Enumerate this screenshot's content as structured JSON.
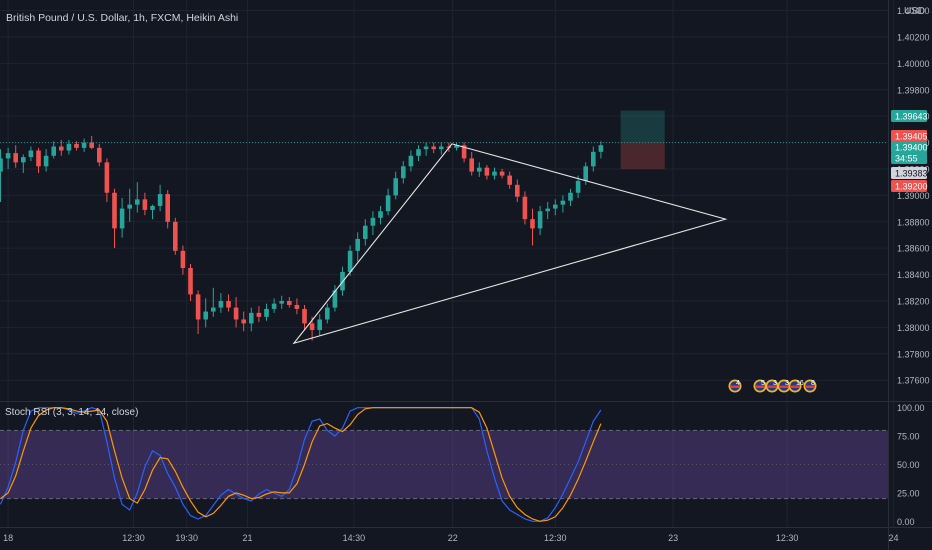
{
  "header": {
    "symbol_title": "British Pound / U.S. Dollar, 1h, FXCM, Heikin Ashi",
    "currency": "USD"
  },
  "colors": {
    "background": "#131722",
    "grid": "#1f2330",
    "up": "#26a69a",
    "down": "#ef5350",
    "stoch_k": "#2962ff",
    "stoch_d": "#ff9800",
    "stoch_band": "#7e57c2",
    "axis_text": "#b2b5be"
  },
  "price_tags": [
    {
      "label": "1.39643",
      "value": 1.39643,
      "color": "#26a69a",
      "text_color": "#ffffff"
    },
    {
      "label": "1.39405",
      "value": 1.39405,
      "color": "#ef5350",
      "text_color": "#ffffff"
    },
    {
      "label": "1.39400",
      "value": 1.394,
      "color": "#26a69a",
      "text_color": "#ffffff"
    },
    {
      "label": "34:55",
      "value": 1.39345,
      "color": "#26a69a",
      "text_color": "#ffffff"
    },
    {
      "label": "1.39383",
      "value": 1.3927,
      "color": "#d1d4dc",
      "text_color": "#131722"
    },
    {
      "label": "1.39200",
      "value": 1.392,
      "color": "#ef5350",
      "text_color": "#ffffff"
    }
  ],
  "event_badges": [
    {
      "label": "4"
    },
    {
      "label": "5"
    },
    {
      "label": "3"
    },
    {
      "label": "3"
    },
    {
      "label": "16"
    },
    {
      "label": "8"
    }
  ],
  "chart_data": [
    {
      "type": "candlestick",
      "style": "Heikin Ashi",
      "ylim": [
        1.3745,
        1.4048
      ],
      "y_ticks": [
        1.404,
        1.402,
        1.4,
        1.398,
        1.396,
        1.394,
        1.392,
        1.39,
        1.388,
        1.386,
        1.384,
        1.382,
        1.38,
        1.378,
        1.376
      ],
      "y_tick_labels": [
        "1.40400",
        "1.40200",
        "1.40000",
        "1.39800",
        "1.39600",
        "1.39400",
        "1.39200",
        "1.39000",
        "1.38800",
        "1.38600",
        "1.38400",
        "1.38200",
        "1.38000",
        "1.37800",
        "1.37600"
      ],
      "x_ticks": [
        {
          "label": "18",
          "bar": 1
        },
        {
          "label": "12:30",
          "bar": 17.5
        },
        {
          "label": "19:30",
          "bar": 24.5
        },
        {
          "label": "21",
          "bar": 32.5
        },
        {
          "label": "14:30",
          "bar": 46.5
        },
        {
          "label": "22",
          "bar": 59.5
        },
        {
          "label": "12:30",
          "bar": 73
        },
        {
          "label": "23",
          "bar": 88.5
        },
        {
          "label": "12:30",
          "bar": 103.5
        },
        {
          "label": "24",
          "bar": 117.5
        }
      ],
      "bars": [
        {
          "o": 1.3918,
          "h": 1.3935,
          "l": 1.3895,
          "c": 1.3928
        },
        {
          "o": 1.3928,
          "h": 1.3936,
          "l": 1.392,
          "c": 1.3932
        },
        {
          "o": 1.3932,
          "h": 1.3938,
          "l": 1.3921,
          "c": 1.3925
        },
        {
          "o": 1.3925,
          "h": 1.3931,
          "l": 1.3917,
          "c": 1.3929
        },
        {
          "o": 1.3929,
          "h": 1.3937,
          "l": 1.3926,
          "c": 1.3934
        },
        {
          "o": 1.3934,
          "h": 1.3936,
          "l": 1.3917,
          "c": 1.3922
        },
        {
          "o": 1.3922,
          "h": 1.3935,
          "l": 1.3918,
          "c": 1.393
        },
        {
          "o": 1.393,
          "h": 1.3941,
          "l": 1.3928,
          "c": 1.3937
        },
        {
          "o": 1.3937,
          "h": 1.3942,
          "l": 1.393,
          "c": 1.3934
        },
        {
          "o": 1.3934,
          "h": 1.3942,
          "l": 1.3931,
          "c": 1.3939
        },
        {
          "o": 1.3939,
          "h": 1.3941,
          "l": 1.3934,
          "c": 1.3936
        },
        {
          "o": 1.3936,
          "h": 1.3943,
          "l": 1.3933,
          "c": 1.394
        },
        {
          "o": 1.394,
          "h": 1.3945,
          "l": 1.3935,
          "c": 1.3936
        },
        {
          "o": 1.3936,
          "h": 1.3939,
          "l": 1.3922,
          "c": 1.3925
        },
        {
          "o": 1.3925,
          "h": 1.3928,
          "l": 1.3895,
          "c": 1.3902
        },
        {
          "o": 1.3902,
          "h": 1.3905,
          "l": 1.386,
          "c": 1.3875
        },
        {
          "o": 1.3875,
          "h": 1.3898,
          "l": 1.3868,
          "c": 1.389
        },
        {
          "o": 1.389,
          "h": 1.3905,
          "l": 1.388,
          "c": 1.3893
        },
        {
          "o": 1.3893,
          "h": 1.391,
          "l": 1.3887,
          "c": 1.3897
        },
        {
          "o": 1.3897,
          "h": 1.3902,
          "l": 1.3885,
          "c": 1.3889
        },
        {
          "o": 1.3889,
          "h": 1.3893,
          "l": 1.3882,
          "c": 1.3892
        },
        {
          "o": 1.3892,
          "h": 1.3908,
          "l": 1.3888,
          "c": 1.3901
        },
        {
          "o": 1.3901,
          "h": 1.3904,
          "l": 1.3875,
          "c": 1.388
        },
        {
          "o": 1.388,
          "h": 1.3883,
          "l": 1.3855,
          "c": 1.3858
        },
        {
          "o": 1.3858,
          "h": 1.3862,
          "l": 1.384,
          "c": 1.3845
        },
        {
          "o": 1.3845,
          "h": 1.3848,
          "l": 1.382,
          "c": 1.3825
        },
        {
          "o": 1.3825,
          "h": 1.3828,
          "l": 1.3795,
          "c": 1.3806
        },
        {
          "o": 1.3806,
          "h": 1.3822,
          "l": 1.38,
          "c": 1.3812
        },
        {
          "o": 1.3812,
          "h": 1.383,
          "l": 1.3808,
          "c": 1.3815
        },
        {
          "o": 1.3815,
          "h": 1.3826,
          "l": 1.3811,
          "c": 1.382
        },
        {
          "o": 1.382,
          "h": 1.3825,
          "l": 1.3812,
          "c": 1.3815
        },
        {
          "o": 1.3815,
          "h": 1.3823,
          "l": 1.38,
          "c": 1.3806
        },
        {
          "o": 1.3806,
          "h": 1.3812,
          "l": 1.3797,
          "c": 1.3803
        },
        {
          "o": 1.3803,
          "h": 1.3815,
          "l": 1.3797,
          "c": 1.3811
        },
        {
          "o": 1.3811,
          "h": 1.3816,
          "l": 1.3804,
          "c": 1.3808
        },
        {
          "o": 1.3808,
          "h": 1.3818,
          "l": 1.3805,
          "c": 1.3814
        },
        {
          "o": 1.3814,
          "h": 1.3822,
          "l": 1.3811,
          "c": 1.3818
        },
        {
          "o": 1.3818,
          "h": 1.3824,
          "l": 1.3814,
          "c": 1.382
        },
        {
          "o": 1.382,
          "h": 1.3823,
          "l": 1.3815,
          "c": 1.3817
        },
        {
          "o": 1.3817,
          "h": 1.3822,
          "l": 1.381,
          "c": 1.3814
        },
        {
          "o": 1.3814,
          "h": 1.3817,
          "l": 1.3798,
          "c": 1.3803
        },
        {
          "o": 1.3803,
          "h": 1.3808,
          "l": 1.379,
          "c": 1.3798
        },
        {
          "o": 1.3798,
          "h": 1.381,
          "l": 1.3794,
          "c": 1.3806
        },
        {
          "o": 1.3806,
          "h": 1.3818,
          "l": 1.3803,
          "c": 1.3815
        },
        {
          "o": 1.3815,
          "h": 1.3832,
          "l": 1.3812,
          "c": 1.3828
        },
        {
          "o": 1.3828,
          "h": 1.3846,
          "l": 1.3824,
          "c": 1.3842
        },
        {
          "o": 1.3842,
          "h": 1.3862,
          "l": 1.3839,
          "c": 1.3858
        },
        {
          "o": 1.3858,
          "h": 1.3872,
          "l": 1.385,
          "c": 1.3867
        },
        {
          "o": 1.3867,
          "h": 1.3882,
          "l": 1.3862,
          "c": 1.3877
        },
        {
          "o": 1.3877,
          "h": 1.3888,
          "l": 1.387,
          "c": 1.3883
        },
        {
          "o": 1.3883,
          "h": 1.3892,
          "l": 1.3878,
          "c": 1.3888
        },
        {
          "o": 1.3888,
          "h": 1.3905,
          "l": 1.3885,
          "c": 1.39
        },
        {
          "o": 1.39,
          "h": 1.3918,
          "l": 1.3897,
          "c": 1.3913
        },
        {
          "o": 1.3913,
          "h": 1.3926,
          "l": 1.3909,
          "c": 1.3922
        },
        {
          "o": 1.3922,
          "h": 1.3934,
          "l": 1.3918,
          "c": 1.393
        },
        {
          "o": 1.393,
          "h": 1.3938,
          "l": 1.3926,
          "c": 1.3935
        },
        {
          "o": 1.3935,
          "h": 1.394,
          "l": 1.393,
          "c": 1.3937
        },
        {
          "o": 1.3937,
          "h": 1.394,
          "l": 1.3932,
          "c": 1.3935
        },
        {
          "o": 1.3935,
          "h": 1.394,
          "l": 1.3931,
          "c": 1.3937
        },
        {
          "o": 1.3937,
          "h": 1.394,
          "l": 1.3933,
          "c": 1.3936
        },
        {
          "o": 1.3936,
          "h": 1.394,
          "l": 1.3934,
          "c": 1.3938
        },
        {
          "o": 1.3938,
          "h": 1.394,
          "l": 1.3925,
          "c": 1.3928
        },
        {
          "o": 1.3928,
          "h": 1.3933,
          "l": 1.3915,
          "c": 1.3918
        },
        {
          "o": 1.3918,
          "h": 1.3925,
          "l": 1.3914,
          "c": 1.3921
        },
        {
          "o": 1.3921,
          "h": 1.3923,
          "l": 1.3912,
          "c": 1.3915
        },
        {
          "o": 1.3915,
          "h": 1.3921,
          "l": 1.3912,
          "c": 1.3918
        },
        {
          "o": 1.3918,
          "h": 1.392,
          "l": 1.3913,
          "c": 1.3915
        },
        {
          "o": 1.3915,
          "h": 1.3918,
          "l": 1.3905,
          "c": 1.3908
        },
        {
          "o": 1.3908,
          "h": 1.3912,
          "l": 1.3895,
          "c": 1.3899
        },
        {
          "o": 1.3899,
          "h": 1.3903,
          "l": 1.3878,
          "c": 1.3882
        },
        {
          "o": 1.3882,
          "h": 1.389,
          "l": 1.3862,
          "c": 1.3875
        },
        {
          "o": 1.3875,
          "h": 1.3892,
          "l": 1.387,
          "c": 1.3888
        },
        {
          "o": 1.3888,
          "h": 1.3895,
          "l": 1.3882,
          "c": 1.389
        },
        {
          "o": 1.389,
          "h": 1.3897,
          "l": 1.3885,
          "c": 1.3893
        },
        {
          "o": 1.3893,
          "h": 1.39,
          "l": 1.3887,
          "c": 1.3896
        },
        {
          "o": 1.3896,
          "h": 1.3905,
          "l": 1.3892,
          "c": 1.3902
        },
        {
          "o": 1.3902,
          "h": 1.3915,
          "l": 1.3898,
          "c": 1.3911
        },
        {
          "o": 1.3911,
          "h": 1.3925,
          "l": 1.3908,
          "c": 1.3922
        },
        {
          "o": 1.3922,
          "h": 1.3937,
          "l": 1.3918,
          "c": 1.3933
        },
        {
          "o": 1.3933,
          "h": 1.3941,
          "l": 1.3928,
          "c": 1.3938
        }
      ],
      "drawings": {
        "triangle": [
          {
            "bar": 59.4,
            "price": 1.3939
          },
          {
            "bar": 95.4,
            "price": 1.3882
          },
          {
            "bar": 38.6,
            "price": 1.3788
          }
        ],
        "long_position": {
          "bar_start": 81.6,
          "bar_end": 87.4,
          "entry": 1.394,
          "target": 1.39643,
          "stop": 1.392
        },
        "price_line": 1.394
      }
    },
    {
      "type": "line",
      "title": "Stoch RSI (3, 3, 14, 14, close)",
      "ylim": [
        -5,
        105
      ],
      "y_ticks": [
        100,
        75,
        50,
        25,
        0
      ],
      "y_tick_labels": [
        "100.00",
        "75.00",
        "50.00",
        "25.00",
        "0.00"
      ],
      "band": [
        20,
        80
      ],
      "series": [
        {
          "key": "K",
          "values": [
            15,
            30,
            52,
            80,
            97,
            100,
            100,
            100,
            100,
            98,
            95,
            97,
            100,
            98,
            70,
            38,
            15,
            10,
            25,
            48,
            62,
            58,
            42,
            30,
            15,
            5,
            2,
            5,
            14,
            23,
            28,
            24,
            20,
            18,
            24,
            28,
            25,
            22,
            28,
            47,
            72,
            88,
            90,
            80,
            75,
            82,
            97,
            100,
            100,
            100,
            100,
            100,
            100,
            100,
            100,
            100,
            100,
            100,
            100,
            100,
            100,
            100,
            100,
            90,
            62,
            38,
            18,
            10,
            6,
            2,
            0,
            0,
            3,
            12,
            24,
            38,
            52,
            70,
            88,
            98
          ]
        },
        {
          "key": "D",
          "values": [
            20,
            25,
            40,
            62,
            82,
            93,
            98,
            100,
            100,
            99,
            97,
            96,
            97,
            98,
            88,
            62,
            38,
            20,
            16,
            28,
            45,
            56,
            55,
            44,
            30,
            18,
            8,
            4,
            7,
            14,
            22,
            25,
            23,
            20,
            21,
            24,
            26,
            25,
            25,
            33,
            50,
            70,
            84,
            86,
            82,
            79,
            85,
            94,
            99,
            100,
            100,
            100,
            100,
            100,
            100,
            100,
            100,
            100,
            100,
            100,
            100,
            100,
            100,
            96,
            82,
            60,
            38,
            22,
            12,
            6,
            2,
            0,
            1,
            4,
            12,
            23,
            37,
            53,
            70,
            86
          ]
        }
      ]
    }
  ]
}
